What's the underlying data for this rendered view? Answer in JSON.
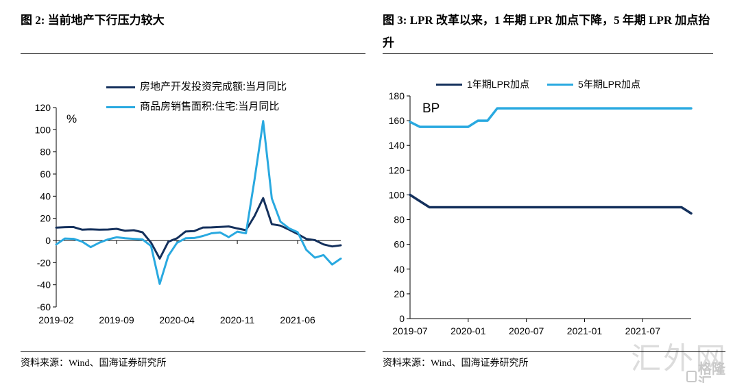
{
  "left_panel": {
    "title": "图 2:  当前地产下行压力较大",
    "source": "资料来源：Wind、国海证券研究所"
  },
  "right_panel": {
    "title": "图 3:  LPR 改革以来，1 年期 LPR 加点下降，5 年期 LPR 加点抬升",
    "source": "资料来源：Wind、国海证券研究所"
  },
  "watermark": {
    "text": "汇外网",
    "sub_text": "格隆汇"
  },
  "colors": {
    "navy": "#14305c",
    "light_blue": "#29a9e0",
    "axis": "#000000",
    "watermark": "#dcdcdc"
  },
  "chart_data": [
    {
      "type": "line",
      "title": "当前地产下行压力较大",
      "unit": "%",
      "ylim": [
        -60,
        120
      ],
      "y_ticks": [
        120,
        100,
        80,
        60,
        40,
        20,
        0,
        -20,
        -40,
        -60
      ],
      "axis_cross_y": 0,
      "grid": false,
      "legend_position": "top-stacked",
      "x": [
        "2019-02",
        "2019-03",
        "2019-04",
        "2019-05",
        "2019-06",
        "2019-07",
        "2019-08",
        "2019-09",
        "2019-10",
        "2019-11",
        "2019-12",
        "2020-01",
        "2020-02",
        "2020-03",
        "2020-04",
        "2020-05",
        "2020-06",
        "2020-07",
        "2020-08",
        "2020-09",
        "2020-10",
        "2020-11",
        "2020-12",
        "2021-01",
        "2021-02",
        "2021-03",
        "2021-04",
        "2021-05",
        "2021-06",
        "2021-07",
        "2021-08",
        "2021-09",
        "2021-10",
        "2021-11"
      ],
      "x_tick_indices": [
        0,
        7,
        14,
        21,
        28
      ],
      "x_tick_labels": [
        "2019-02",
        "2019-09",
        "2020-04",
        "2020-11",
        "2021-06"
      ],
      "series": [
        {
          "name": "房地产开发投资完成额:当月同比",
          "color": "#14305c",
          "values": [
            11.6,
            12.0,
            12.1,
            9.8,
            10.1,
            9.7,
            9.9,
            10.5,
            8.8,
            9.3,
            7.4,
            -2.0,
            -16.3,
            -1.1,
            2.0,
            8.1,
            8.5,
            11.7,
            11.8,
            12.2,
            12.7,
            10.9,
            9.3,
            22.0,
            38.3,
            14.7,
            13.4,
            9.8,
            5.9,
            1.4,
            0.3,
            -3.5,
            -5.4,
            -4.3
          ]
        },
        {
          "name": "商品房销售面积:住宅:当月同比",
          "color": "#29a9e0",
          "values": [
            -3.6,
            1.8,
            1.5,
            -1.0,
            -6.0,
            -2.0,
            1.0,
            2.9,
            2.0,
            1.5,
            1.0,
            -5.0,
            -39.2,
            -13.8,
            -2.1,
            2.0,
            2.2,
            4.0,
            6.5,
            7.3,
            3.0,
            8.0,
            6.5,
            55.0,
            107.9,
            38.0,
            17.0,
            11.0,
            7.5,
            -8.5,
            -15.5,
            -13.2,
            -21.7,
            -16.3
          ]
        }
      ]
    },
    {
      "type": "line",
      "title": "LPR 改革以来，1 年期 LPR 加点下降，5 年期 LPR 加点抬升",
      "unit": "BP",
      "ylim": [
        0,
        180
      ],
      "y_ticks": [
        180,
        160,
        140,
        120,
        100,
        80,
        60,
        40,
        20,
        0
      ],
      "axis_cross_y": 0,
      "grid": false,
      "legend_position": "top-horizontal",
      "x": [
        "2019-07",
        "2019-08",
        "2019-09",
        "2019-10",
        "2019-11",
        "2019-12",
        "2020-01",
        "2020-02",
        "2020-03",
        "2020-04",
        "2020-05",
        "2020-06",
        "2020-07",
        "2020-08",
        "2020-09",
        "2020-10",
        "2020-11",
        "2020-12",
        "2021-01",
        "2021-02",
        "2021-03",
        "2021-04",
        "2021-05",
        "2021-06",
        "2021-07",
        "2021-08",
        "2021-09",
        "2021-10",
        "2021-11",
        "2021-12"
      ],
      "x_tick_indices": [
        0,
        6,
        12,
        18,
        24
      ],
      "x_tick_labels": [
        "2019-07",
        "2020-01",
        "2020-07",
        "2021-01",
        "2021-07"
      ],
      "series": [
        {
          "name": "1年期LPR加点",
          "color": "#14305c",
          "values": [
            100,
            95,
            90,
            90,
            90,
            90,
            90,
            90,
            90,
            90,
            90,
            90,
            90,
            90,
            90,
            90,
            90,
            90,
            90,
            90,
            90,
            90,
            90,
            90,
            90,
            90,
            90,
            90,
            90,
            85
          ]
        },
        {
          "name": "5年期LPR加点",
          "color": "#29a9e0",
          "values": [
            159,
            155,
            155,
            155,
            155,
            155,
            155,
            160,
            160,
            170,
            170,
            170,
            170,
            170,
            170,
            170,
            170,
            170,
            170,
            170,
            170,
            170,
            170,
            170,
            170,
            170,
            170,
            170,
            170,
            170
          ]
        }
      ]
    }
  ]
}
